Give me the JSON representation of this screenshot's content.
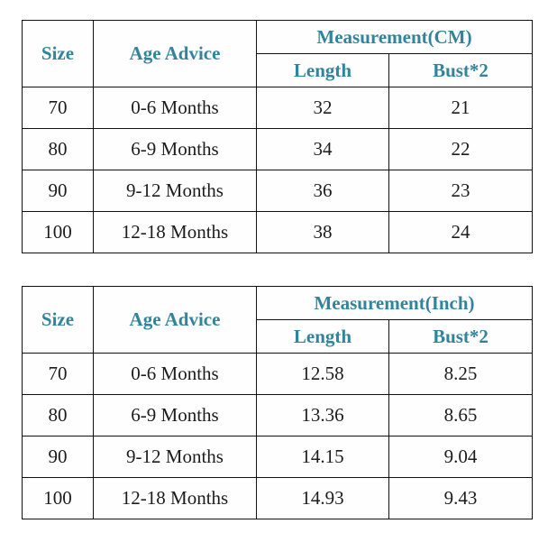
{
  "accent_color": "#31849B",
  "tables": [
    {
      "name": "size-chart-cm",
      "headers": {
        "size": "Size",
        "age": "Age Advice",
        "measurement": "Measurement(CM)",
        "length": "Length",
        "bust": "Bust*2"
      },
      "rows": [
        [
          "70",
          "0-6 Months",
          "32",
          "21"
        ],
        [
          "80",
          "6-9 Months",
          "34",
          "22"
        ],
        [
          "90",
          "9-12 Months",
          "36",
          "23"
        ],
        [
          "100",
          "12-18 Months",
          "38",
          "24"
        ]
      ]
    },
    {
      "name": "size-chart-inch",
      "headers": {
        "size": "Size",
        "age": "Age Advice",
        "measurement": "Measurement(Inch)",
        "length": "Length",
        "bust": "Bust*2"
      },
      "rows": [
        [
          "70",
          "0-6 Months",
          "12.58",
          "8.25"
        ],
        [
          "80",
          "6-9 Months",
          "13.36",
          "8.65"
        ],
        [
          "90",
          "9-12 Months",
          "14.15",
          "9.04"
        ],
        [
          "100",
          "12-18 Months",
          "14.93",
          "9.43"
        ]
      ]
    }
  ],
  "chart_data": [
    {
      "type": "table",
      "title": "Measurement(CM)",
      "columns": [
        "Size",
        "Age Advice",
        "Length",
        "Bust*2"
      ],
      "rows": [
        [
          "70",
          "0-6 Months",
          32,
          21
        ],
        [
          "80",
          "6-9 Months",
          34,
          22
        ],
        [
          "90",
          "9-12 Months",
          36,
          23
        ],
        [
          "100",
          "12-18 Months",
          38,
          24
        ]
      ]
    },
    {
      "type": "table",
      "title": "Measurement(Inch)",
      "columns": [
        "Size",
        "Age Advice",
        "Length",
        "Bust*2"
      ],
      "rows": [
        [
          "70",
          "0-6 Months",
          12.58,
          8.25
        ],
        [
          "80",
          "6-9 Months",
          13.36,
          8.65
        ],
        [
          "90",
          "9-12 Months",
          14.15,
          9.04
        ],
        [
          "100",
          "12-18 Months",
          14.93,
          9.43
        ]
      ]
    }
  ]
}
